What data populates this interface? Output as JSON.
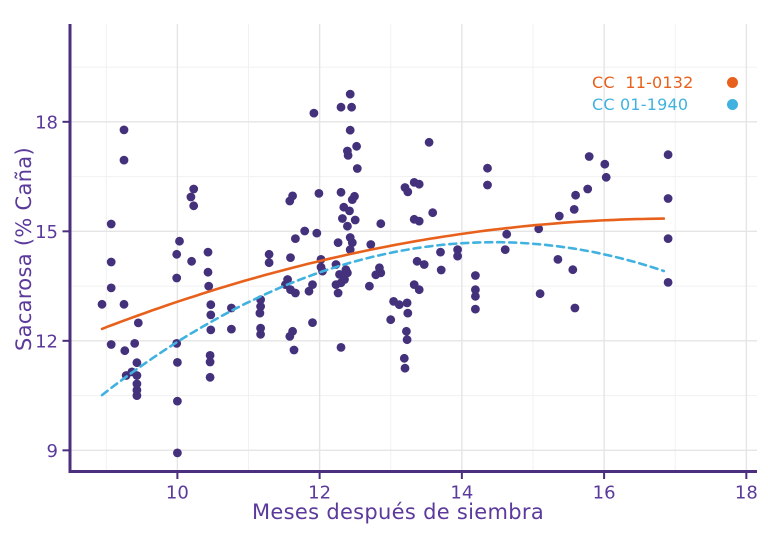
{
  "chart_data": {
    "type": "scatter",
    "title": "",
    "xlabel": "Meses después de siembra",
    "ylabel": "Sacarosa (% Caña)",
    "x_ticks": [
      10,
      12,
      14,
      16,
      18
    ],
    "y_ticks": [
      9,
      12,
      15,
      18
    ],
    "x_minor_grid": [
      9,
      11,
      13,
      15,
      17
    ],
    "y_minor_grid": [
      10.5,
      13.5,
      16.5,
      19.5
    ],
    "xlim": [
      8.49,
      18.15
    ],
    "ylim": [
      8.42,
      20.68
    ],
    "grid": true,
    "legend_position": "top-right-inside",
    "point_color": "#44317C",
    "axis_color": "#4B2E7E",
    "label_color": "#5B3A9B",
    "grid_major_color": "#E5E5E5",
    "grid_minor_color": "#F1F1F1",
    "points": [
      [
        8.94,
        13.0
      ],
      [
        9.07,
        15.2
      ],
      [
        9.07,
        14.16
      ],
      [
        9.07,
        13.45
      ],
      [
        9.07,
        11.9
      ],
      [
        9.25,
        17.78
      ],
      [
        9.25,
        16.95
      ],
      [
        9.25,
        13.0
      ],
      [
        9.26,
        11.73
      ],
      [
        9.28,
        11.05
      ],
      [
        9.36,
        11.15
      ],
      [
        9.4,
        11.93
      ],
      [
        9.43,
        11.4
      ],
      [
        9.43,
        11.05
      ],
      [
        9.43,
        10.82
      ],
      [
        9.43,
        10.65
      ],
      [
        9.43,
        10.5
      ],
      [
        9.45,
        12.49
      ],
      [
        9.99,
        14.37
      ],
      [
        9.99,
        13.72
      ],
      [
        9.99,
        11.93
      ],
      [
        10.0,
        11.41
      ],
      [
        10.0,
        10.35
      ],
      [
        10.0,
        8.93
      ],
      [
        10.03,
        14.73
      ],
      [
        10.19,
        15.94
      ],
      [
        10.2,
        14.18
      ],
      [
        10.23,
        16.16
      ],
      [
        10.23,
        15.7
      ],
      [
        10.43,
        14.43
      ],
      [
        10.43,
        13.88
      ],
      [
        10.44,
        13.5
      ],
      [
        10.46,
        11.6
      ],
      [
        10.46,
        11.42
      ],
      [
        10.46,
        11.0
      ],
      [
        10.47,
        12.99
      ],
      [
        10.47,
        12.71
      ],
      [
        10.47,
        12.3
      ],
      [
        10.76,
        12.9
      ],
      [
        10.76,
        12.32
      ],
      [
        11.16,
        12.76
      ],
      [
        11.17,
        13.13
      ],
      [
        11.17,
        12.94
      ],
      [
        11.17,
        12.35
      ],
      [
        11.17,
        12.18
      ],
      [
        11.29,
        14.37
      ],
      [
        11.29,
        14.14
      ],
      [
        11.52,
        13.54
      ],
      [
        11.55,
        13.68
      ],
      [
        11.58,
        15.83
      ],
      [
        11.58,
        12.12
      ],
      [
        11.59,
        14.28
      ],
      [
        11.59,
        13.4
      ],
      [
        11.62,
        15.97
      ],
      [
        11.62,
        12.26
      ],
      [
        11.64,
        11.75
      ],
      [
        11.66,
        14.8
      ],
      [
        11.66,
        13.31
      ],
      [
        11.79,
        15.01
      ],
      [
        11.85,
        13.36
      ],
      [
        11.9,
        13.54
      ],
      [
        11.9,
        12.5
      ],
      [
        11.92,
        18.24
      ],
      [
        11.96,
        14.95
      ],
      [
        11.99,
        16.04
      ],
      [
        12.02,
        14.23
      ],
      [
        12.02,
        14.02
      ],
      [
        12.04,
        13.91
      ],
      [
        12.23,
        14.09
      ],
      [
        12.23,
        13.54
      ],
      [
        12.26,
        14.69
      ],
      [
        12.26,
        13.31
      ],
      [
        12.28,
        13.82
      ],
      [
        12.3,
        18.4
      ],
      [
        12.3,
        16.07
      ],
      [
        12.3,
        13.59
      ],
      [
        12.3,
        11.82
      ],
      [
        12.32,
        15.35
      ],
      [
        12.34,
        15.66
      ],
      [
        12.35,
        13.68
      ],
      [
        12.37,
        13.95
      ],
      [
        12.39,
        17.2
      ],
      [
        12.39,
        15.14
      ],
      [
        12.39,
        13.86
      ],
      [
        12.4,
        17.08
      ],
      [
        12.42,
        15.56
      ],
      [
        12.43,
        18.76
      ],
      [
        12.43,
        17.77
      ],
      [
        12.43,
        14.83
      ],
      [
        12.43,
        14.5
      ],
      [
        12.45,
        18.4
      ],
      [
        12.46,
        15.87
      ],
      [
        12.46,
        14.69
      ],
      [
        12.49,
        15.96
      ],
      [
        12.5,
        15.31
      ],
      [
        12.52,
        17.33
      ],
      [
        12.53,
        16.72
      ],
      [
        12.7,
        13.5
      ],
      [
        12.72,
        14.64
      ],
      [
        12.79,
        13.81
      ],
      [
        12.84,
        14.0
      ],
      [
        12.86,
        15.21
      ],
      [
        12.86,
        13.86
      ],
      [
        13.0,
        12.58
      ],
      [
        13.04,
        13.08
      ],
      [
        13.12,
        12.99
      ],
      [
        13.19,
        11.52
      ],
      [
        13.2,
        16.2
      ],
      [
        13.2,
        11.25
      ],
      [
        13.22,
        12.26
      ],
      [
        13.23,
        13.04
      ],
      [
        13.23,
        12.03
      ],
      [
        13.24,
        16.08
      ],
      [
        13.24,
        12.76
      ],
      [
        13.33,
        16.34
      ],
      [
        13.33,
        15.33
      ],
      [
        13.33,
        13.54
      ],
      [
        13.37,
        14.18
      ],
      [
        13.4,
        16.29
      ],
      [
        13.4,
        15.28
      ],
      [
        13.4,
        13.4
      ],
      [
        13.47,
        14.09
      ],
      [
        13.54,
        17.44
      ],
      [
        13.59,
        15.51
      ],
      [
        13.7,
        14.43
      ],
      [
        13.71,
        13.94
      ],
      [
        13.94,
        14.5
      ],
      [
        13.94,
        14.32
      ],
      [
        14.19,
        13.79
      ],
      [
        14.19,
        13.4
      ],
      [
        14.19,
        13.22
      ],
      [
        14.19,
        12.87
      ],
      [
        14.36,
        16.73
      ],
      [
        14.36,
        16.27
      ],
      [
        14.61,
        14.5
      ],
      [
        14.63,
        14.92
      ],
      [
        15.08,
        15.07
      ],
      [
        15.1,
        13.29
      ],
      [
        15.35,
        14.23
      ],
      [
        15.37,
        15.42
      ],
      [
        15.56,
        13.95
      ],
      [
        15.58,
        15.6
      ],
      [
        15.59,
        12.9
      ],
      [
        15.6,
        15.99
      ],
      [
        15.77,
        16.16
      ],
      [
        15.79,
        17.05
      ],
      [
        16.01,
        16.84
      ],
      [
        16.03,
        16.48
      ],
      [
        16.9,
        17.1
      ],
      [
        16.9,
        15.9
      ],
      [
        16.9,
        14.8
      ],
      [
        16.9,
        13.6
      ]
    ],
    "series": [
      {
        "name": "CC  11-0132",
        "color": "#E8611C",
        "line": "solid",
        "fit_quadratic": {
          "a": 1.91,
          "b": 1.581,
          "c": -0.0465
        },
        "x_domain": [
          8.94,
          16.9
        ]
      },
      {
        "name": "CC 01-1940",
        "color": "#41B2E0",
        "line": "dashed",
        "fit_quadratic": {
          "a": -14.11,
          "b": 3.988,
          "c": -0.138
        },
        "x_domain": [
          8.94,
          16.9
        ]
      }
    ]
  }
}
